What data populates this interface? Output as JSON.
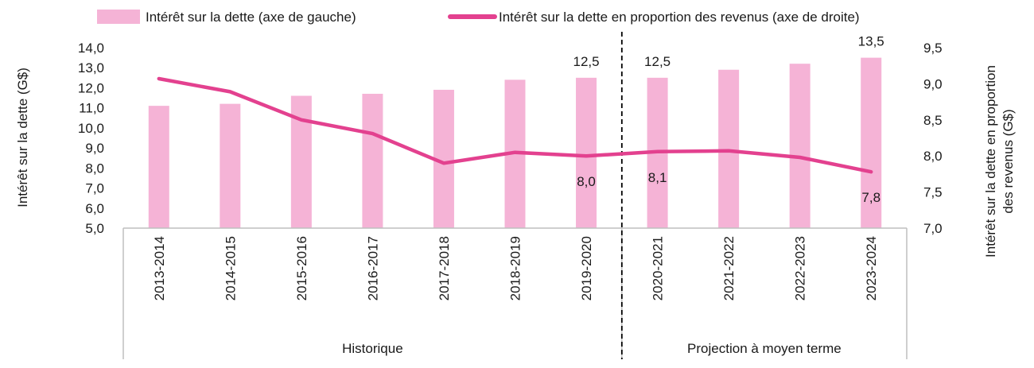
{
  "chart_data": {
    "type": "bar",
    "legend": {
      "position": "top",
      "items": [
        {
          "label": "Intérêt sur la dette (axe de gauche)",
          "kind": "bar"
        },
        {
          "label": "Intérêt sur la dette en proportion des revenus (axe de droite)",
          "kind": "line"
        }
      ]
    },
    "categories": [
      "2013-2014",
      "2014-2015",
      "2015-2016",
      "2016-2017",
      "2017-2018",
      "2018-2019",
      "2019-2020",
      "2020-2021",
      "2021-2022",
      "2022-2023",
      "2023-2024"
    ],
    "series": [
      {
        "name": "Intérêt sur la dette (axe de gauche)",
        "type": "bar",
        "axis": "left",
        "values": [
          11.1,
          11.2,
          11.6,
          11.7,
          11.9,
          12.4,
          12.5,
          12.5,
          12.9,
          13.2,
          13.5
        ],
        "labels": [
          null,
          null,
          null,
          null,
          null,
          null,
          "12,5",
          "12,5",
          null,
          null,
          "13,5"
        ]
      },
      {
        "name": "Intérêt sur la dette en proportion des revenus (axe de droite)",
        "type": "line",
        "axis": "right",
        "values": [
          9.07,
          8.89,
          8.5,
          8.31,
          7.9,
          8.05,
          8.0,
          8.06,
          8.07,
          7.98,
          7.78
        ],
        "labels": [
          null,
          null,
          null,
          null,
          null,
          null,
          "8,0",
          "8,1",
          null,
          null,
          "7,8"
        ]
      }
    ],
    "y_left": {
      "label": "Intérêt sur la dette (G$)",
      "min": 5.0,
      "max": 14.0,
      "step": 1.0,
      "ticks": [
        "5,0",
        "6,0",
        "7,0",
        "8,0",
        "9,0",
        "10,0",
        "11,0",
        "12,0",
        "13,0",
        "14,0"
      ]
    },
    "y_right": {
      "label_lines": [
        "Intérêt sur la dette en proportion",
        "des revenus (G$)"
      ],
      "min": 7.0,
      "max": 9.5,
      "step": 0.5,
      "ticks": [
        "7,0",
        "7,5",
        "8,0",
        "8,5",
        "9,0",
        "9,5"
      ]
    },
    "groups": [
      {
        "label": "Historique",
        "count": 7
      },
      {
        "label": "Projection à moyen terme",
        "count": 4
      }
    ],
    "grid": false,
    "colors": {
      "bar": "#f5b3d6",
      "line": "#e3418f",
      "axis": "#bfbfbf",
      "divider": "#000000"
    }
  }
}
